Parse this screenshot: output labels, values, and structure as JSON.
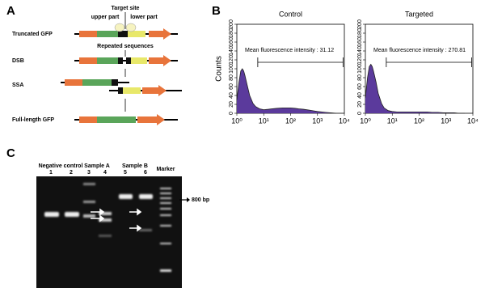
{
  "chart_data": [
    {
      "type": "area",
      "title": "Control",
      "y_label": "Counts",
      "annotation": "Mean fluorescence intensity : 31.12",
      "x": [
        1,
        1.2,
        1.4,
        1.6,
        1.8,
        2,
        2.5,
        3,
        4,
        5,
        7,
        10,
        15,
        20,
        30,
        50,
        80,
        100,
        150,
        200,
        300,
        500,
        800,
        1000,
        2000,
        3000,
        5000
      ],
      "values": [
        30,
        70,
        95,
        100,
        95,
        85,
        60,
        40,
        22,
        15,
        10,
        8,
        9,
        10,
        11,
        12,
        12,
        12,
        11,
        10,
        9,
        7,
        5,
        4,
        2,
        1,
        0
      ],
      "color": "#5b3a9c",
      "log_x": true,
      "gate_x": [
        6,
        9000
      ],
      "xlim": [
        1,
        10000
      ],
      "ylim": [
        0,
        200
      ],
      "xticks": [
        {
          "value": 1,
          "label": "10⁰"
        },
        {
          "value": 10,
          "label": "10¹"
        },
        {
          "value": 100,
          "label": "10²"
        },
        {
          "value": 1000,
          "label": "10³"
        },
        {
          "value": 10000,
          "label": "10⁴"
        }
      ],
      "yticks": [
        0,
        20,
        40,
        60,
        80,
        100,
        120,
        140,
        160,
        180,
        200
      ]
    },
    {
      "type": "area",
      "title": "Targeted",
      "annotation": "Mean fluorescence intensity : 270.81",
      "x": [
        1,
        1.2,
        1.4,
        1.6,
        1.8,
        2,
        2.5,
        3,
        4,
        5,
        7,
        10,
        15,
        20,
        30,
        50,
        80,
        100,
        150,
        200,
        300,
        500,
        800,
        1000,
        2000,
        3000,
        5000
      ],
      "values": [
        35,
        80,
        105,
        110,
        105,
        95,
        70,
        45,
        22,
        12,
        6,
        4,
        3,
        3,
        3,
        3,
        3,
        3,
        3,
        3,
        2,
        2,
        1,
        1,
        1,
        0,
        0
      ],
      "color": "#5b3a9c",
      "log_x": true,
      "gate_x": [
        6,
        9000
      ],
      "xlim": [
        1,
        10000
      ],
      "ylim": [
        0,
        200
      ],
      "xticks": [
        {
          "value": 1,
          "label": "10⁰"
        },
        {
          "value": 10,
          "label": "10¹"
        },
        {
          "value": 100,
          "label": "10²"
        },
        {
          "value": 1000,
          "label": "10³"
        },
        {
          "value": 10000,
          "label": "10⁴"
        }
      ],
      "yticks": [
        0,
        20,
        40,
        60,
        80,
        100,
        120,
        140,
        160,
        180,
        200
      ]
    }
  ],
  "figure": {
    "panel_labels": [
      "A",
      "B",
      "C"
    ],
    "diagram": {
      "target_site": "Target site",
      "upper_part": "upper part",
      "lower_part": "lower part",
      "repeated": "Repeated sequences",
      "rows": [
        "Truncated GFP",
        "DSB",
        "SSA",
        "Full-length GFP"
      ]
    },
    "gel": {
      "groups": [
        "Negative control",
        "Sample A",
        "Sample B"
      ],
      "lanes": [
        "1",
        "2",
        "3",
        "4",
        "5",
        "6"
      ],
      "marker": "Marker",
      "size": "800 bp"
    }
  }
}
